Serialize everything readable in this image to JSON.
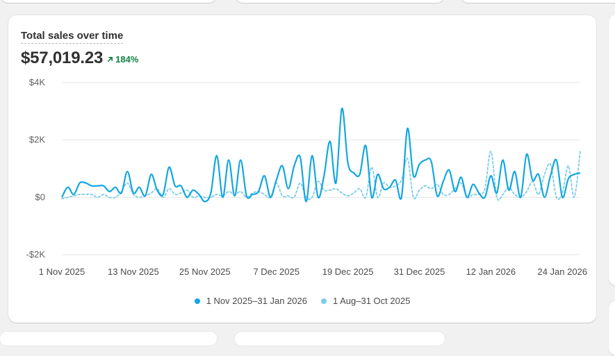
{
  "card": {
    "title": "Total sales over time",
    "total": "$57,019.23",
    "change": "184%"
  },
  "colors": {
    "current": "#13a6e0",
    "previous": "#7ccbea",
    "positive": "#108043",
    "grid": "#e6e6e6"
  },
  "legend": {
    "current": "1 Nov 2025–31 Jan 2026",
    "previous": "1 Aug–31 Oct 2025"
  },
  "chart_data": {
    "type": "line",
    "title": "Total sales over time",
    "ylim": [
      -2000,
      4000
    ],
    "y_ticks": [
      {
        "value": 4000,
        "label": "$4K"
      },
      {
        "value": 2000,
        "label": "$2K"
      },
      {
        "value": 0,
        "label": "$0"
      },
      {
        "value": -2000,
        "label": "-$2K"
      }
    ],
    "x_ticks": [
      {
        "index": 0,
        "label": "1 Nov 2025"
      },
      {
        "index": 12,
        "label": "13 Nov 2025"
      },
      {
        "index": 24,
        "label": "25 Nov 2025"
      },
      {
        "index": 36,
        "label": "7 Dec 2025"
      },
      {
        "index": 48,
        "label": "19 Dec 2025"
      },
      {
        "index": 60,
        "label": "31 Dec 2025"
      },
      {
        "index": 72,
        "label": "12 Jan 2026"
      },
      {
        "index": 84,
        "label": "24 Jan 2026"
      }
    ],
    "grid": true,
    "legend_position": "bottom-center",
    "series": [
      {
        "name": "1 Nov 2025–31 Jan 2026",
        "style": "solid",
        "values": [
          0,
          350,
          100,
          500,
          500,
          400,
          400,
          400,
          200,
          350,
          150,
          900,
          150,
          350,
          50,
          800,
          250,
          100,
          1050,
          400,
          400,
          0,
          250,
          100,
          -150,
          150,
          1450,
          0,
          1300,
          50,
          1300,
          50,
          100,
          200,
          750,
          0,
          600,
          1100,
          300,
          1100,
          1400,
          -150,
          1450,
          0,
          750,
          1950,
          500,
          3100,
          1200,
          850,
          800,
          1800,
          0,
          800,
          300,
          350,
          600,
          0,
          2400,
          750,
          1150,
          1300,
          1250,
          50,
          550,
          950,
          200,
          700,
          0,
          450,
          150,
          0,
          750,
          150,
          1300,
          250,
          900,
          0,
          1500,
          600,
          800,
          0,
          750,
          1300,
          0,
          650,
          800,
          850
        ]
      },
      {
        "name": "1 Aug–31 Oct 2025",
        "style": "dashed",
        "values": [
          -50,
          0,
          50,
          100,
          100,
          100,
          0,
          100,
          0,
          0,
          200,
          500,
          100,
          0,
          50,
          150,
          300,
          0,
          300,
          100,
          150,
          250,
          0,
          50,
          0,
          0,
          100,
          50,
          200,
          100,
          200,
          0,
          150,
          200,
          100,
          0,
          500,
          50,
          50,
          0,
          500,
          0,
          0,
          550,
          250,
          250,
          300,
          150,
          50,
          150,
          300,
          0,
          1050,
          0,
          500,
          350,
          400,
          600,
          1350,
          0,
          250,
          400,
          300,
          450,
          100,
          100,
          300,
          500,
          0,
          100,
          100,
          300,
          1600,
          0,
          100,
          350,
          100,
          0,
          200,
          550,
          100,
          800,
          1150,
          0,
          150,
          1100,
          0,
          1650
        ]
      }
    ]
  }
}
